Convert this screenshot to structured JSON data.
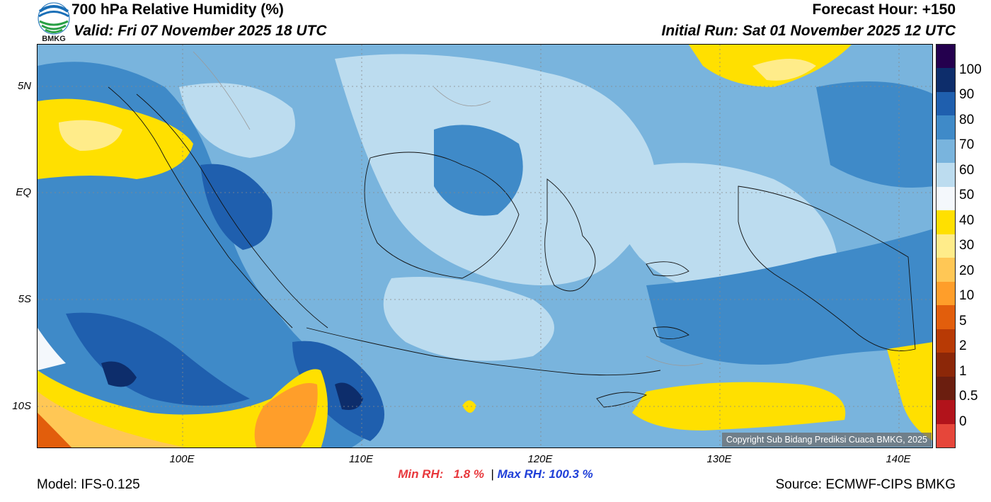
{
  "header": {
    "title": "700 hPa Relative Humidity (%)",
    "valid": "Valid: Fri 07 November 2025 18 UTC",
    "forecast_hour": "Forecast Hour: +150",
    "initial_run": "Initial Run: Sat 01 November 2025 12 UTC",
    "logo_text": "BMKG"
  },
  "map": {
    "lat_labels": [
      "5N",
      "EQ",
      "5S",
      "10S"
    ],
    "lon_labels": [
      "100E",
      "110E",
      "120E",
      "130E",
      "140E"
    ],
    "copyright": "Copyright Sub Bidang Prediksi Cuaca BMKG, 2025"
  },
  "colorbar": {
    "labels": [
      "100",
      "90",
      "80",
      "70",
      "60",
      "50",
      "40",
      "30",
      "20",
      "10",
      "5",
      "2",
      "1",
      "0.5",
      "0"
    ],
    "colors": [
      "#24004e",
      "#0d2d6b",
      "#1f5fae",
      "#3f8ac8",
      "#79b4dd",
      "#bcdcef",
      "#f4f8fc",
      "#ffe000",
      "#ffec8a",
      "#ffc755",
      "#ff9e2a",
      "#e25e0c",
      "#b83a05",
      "#8c2708",
      "#6b1e0f",
      "#b2131b",
      "#e6463a"
    ]
  },
  "footer": {
    "min_label": "Min RH:",
    "min_value": "1.8 %",
    "separator": "|",
    "max_label": "Max RH:",
    "max_value": "100.3 %",
    "model": "Model: IFS-0.125",
    "source": "Source: ECMWF-CIPS BMKG"
  }
}
